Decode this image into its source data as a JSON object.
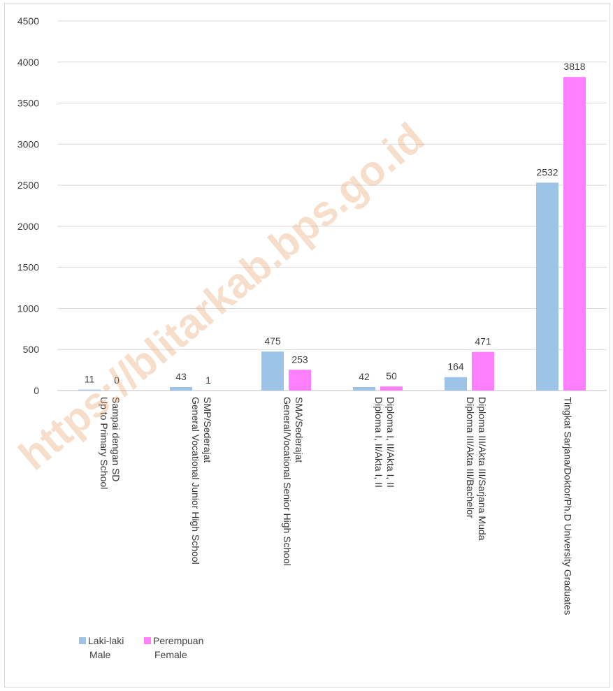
{
  "chart_data": {
    "type": "bar",
    "categories": [
      [
        "Sampai dengan SD",
        "Up to Primary School"
      ],
      [
        "SMP/Sederajat",
        "General Vocational Junior High School"
      ],
      [
        "SMA/Sederajat",
        "General/Vocational Senior High School"
      ],
      [
        "Diploma I, II/Akta I, II",
        "Diploma I, II/Akta I, II"
      ],
      [
        "Diploma III/Akta III/Sarjana Muda",
        "Diploma III/Akta III/Bachelor"
      ],
      [
        "Tingkat Sarjana/Doktor/Ph.D University Graduates"
      ]
    ],
    "series": [
      {
        "name": [
          "Laki-laki",
          "Male"
        ],
        "values": [
          11,
          43,
          475,
          42,
          164,
          2532
        ],
        "color": "#9dc3e6"
      },
      {
        "name": [
          "Perempuan",
          "Female"
        ],
        "values": [
          0,
          1,
          253,
          50,
          471,
          3818
        ],
        "color": "#ff80ff"
      }
    ],
    "ylim": [
      0,
      4500
    ],
    "yticks": [
      0,
      500,
      1000,
      1500,
      2000,
      2500,
      3000,
      3500,
      4000,
      4500
    ],
    "grid": true,
    "legend_position": "bottom-left",
    "title": "",
    "xlabel": "",
    "ylabel": ""
  },
  "watermark": "https://blitarkab.bps.go.id"
}
